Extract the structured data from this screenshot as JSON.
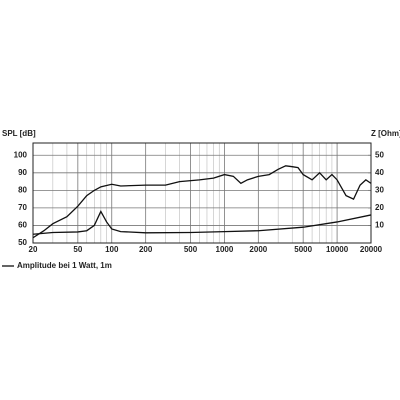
{
  "chart_data": {
    "type": "line",
    "ylabel": "SPL [dB]",
    "y2label": "Z [Ohm]",
    "log_x": true,
    "grid": true,
    "xlim": [
      20,
      20000
    ],
    "xticks": [
      20,
      50,
      100,
      200,
      500,
      1000,
      2000,
      5000,
      10000,
      20000
    ],
    "xminor": [
      30,
      40,
      60,
      70,
      80,
      90,
      300,
      400,
      600,
      700,
      800,
      900,
      3000,
      4000,
      6000,
      7000,
      8000,
      9000
    ],
    "ylim": [
      50,
      107
    ],
    "yticks": [
      50,
      60,
      70,
      80,
      90,
      100
    ],
    "y2lim": [
      0,
      57
    ],
    "y2ticks": [
      10,
      20,
      30,
      40,
      50
    ],
    "legend": "bottom-left",
    "series": [
      {
        "name": "Amplitude bei 1 Watt, 1m",
        "color": "#111",
        "x": [
          20,
          25,
          30,
          40,
          50,
          60,
          70,
          80,
          100,
          120,
          200,
          300,
          400,
          600,
          800,
          1000,
          1200,
          1400,
          1600,
          2000,
          2500,
          3000,
          3500,
          4000,
          4500,
          5000,
          6000,
          7000,
          8000,
          9000,
          10000,
          12000,
          14000,
          16000,
          18000,
          20000
        ],
        "values": [
          53,
          57,
          61,
          65,
          71,
          77,
          80,
          82,
          83.5,
          82.5,
          83,
          83,
          85,
          86,
          87,
          89,
          88,
          84,
          86,
          88,
          89,
          92,
          94,
          93.5,
          93,
          89,
          86,
          90,
          86,
          89,
          86,
          77,
          75,
          83,
          86,
          84
        ]
      },
      {
        "color": "#111",
        "axis": "y2",
        "x": [
          20,
          30,
          50,
          60,
          70,
          80,
          90,
          100,
          120,
          200,
          500,
          1000,
          2000,
          5000,
          10000,
          20000
        ],
        "values": [
          5,
          6,
          6.3,
          7,
          10,
          18,
          12,
          8,
          6.5,
          5.8,
          6,
          6.5,
          7,
          9,
          12,
          16
        ]
      }
    ]
  }
}
